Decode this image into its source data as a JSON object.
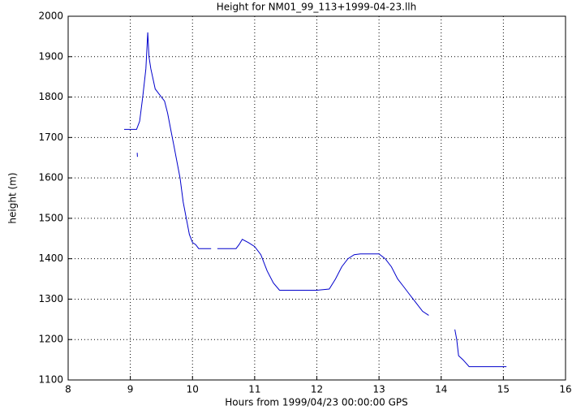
{
  "chart_data": {
    "type": "line",
    "title": "Height for NM01_99_113+1999-04-23.llh",
    "x_label": "Hours from 1999/04/23 00:00:00 GPS",
    "y_label": "height (m)",
    "color": "#0000cc",
    "grid": true,
    "xlim": [
      8,
      16
    ],
    "xticks": [
      8,
      9,
      10,
      11,
      12,
      13,
      14,
      15,
      16
    ],
    "ylim": [
      1100,
      2000
    ],
    "yticks": [
      1100,
      1200,
      1300,
      1400,
      1500,
      1600,
      1700,
      1800,
      1900,
      2000
    ],
    "x": [
      8.9,
      9.1,
      9.15,
      9.2,
      9.25,
      9.28,
      9.3,
      9.33,
      9.4,
      9.45,
      9.5,
      9.55,
      9.6,
      9.65,
      9.7,
      9.8,
      9.85,
      9.9,
      9.95,
      10.0,
      10.05,
      10.1,
      10.3,
      10.35,
      9.11,
      9.115,
      9.12,
      10.4,
      10.7,
      10.75,
      10.8,
      10.9,
      11.0,
      11.1,
      11.2,
      11.3,
      11.4,
      11.6,
      12.0,
      12.2,
      12.3,
      12.4,
      12.5,
      12.6,
      12.7,
      13.0,
      13.1,
      13.2,
      13.3,
      13.4,
      13.5,
      13.6,
      13.7,
      13.8,
      14.0,
      14.22,
      14.25,
      14.28,
      14.35,
      14.45,
      15.05
    ],
    "values": [
      1720,
      1720,
      1740,
      1800,
      1870,
      1960,
      1900,
      1870,
      1820,
      1810,
      1800,
      1790,
      1760,
      1720,
      1680,
      1600,
      1540,
      1500,
      1460,
      1440,
      1435,
      1425,
      1425,
      null,
      1662,
      1652,
      null,
      1425,
      1425,
      1435,
      1448,
      1440,
      1430,
      1410,
      1370,
      1340,
      1322,
      1322,
      1322,
      1325,
      1350,
      1380,
      1400,
      1410,
      1412,
      1412,
      1400,
      1380,
      1350,
      1330,
      1310,
      1290,
      1270,
      1260,
      null,
      1225,
      1200,
      1160,
      1150,
      1133,
      1133
    ]
  }
}
